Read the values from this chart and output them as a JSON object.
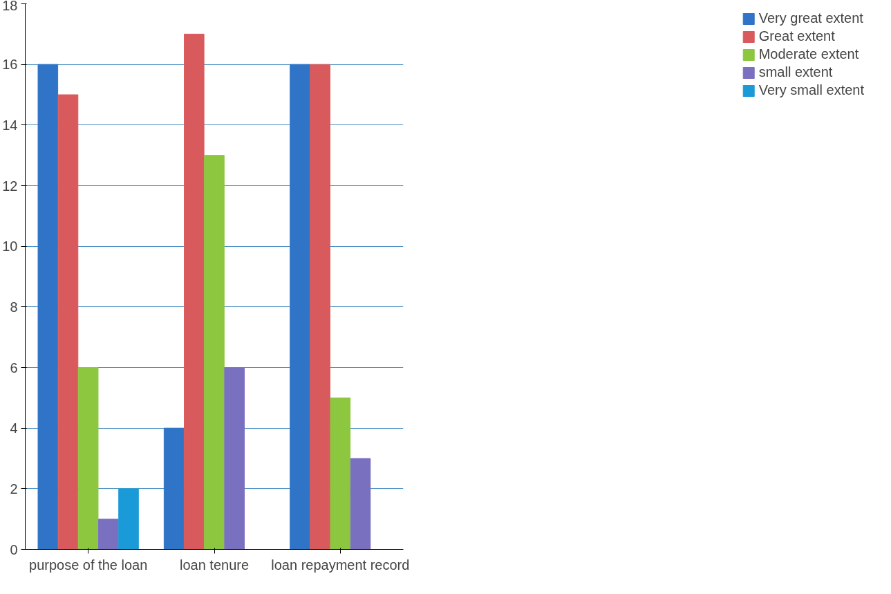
{
  "chart_data": {
    "type": "bar",
    "categories": [
      "purpose of the loan",
      "loan tenure",
      "loan repayment record"
    ],
    "series": [
      {
        "name": "Very great extent",
        "color": "#2f74c6",
        "values": [
          16,
          4,
          16
        ]
      },
      {
        "name": "Great extent",
        "color": "#d95a5c",
        "values": [
          15,
          17,
          16
        ]
      },
      {
        "name": "Moderate extent",
        "color": "#8dc63f",
        "values": [
          6,
          13,
          5
        ]
      },
      {
        "name": "small extent",
        "color": "#7a70c0",
        "values": [
          1,
          6,
          3
        ]
      },
      {
        "name": "Very small extent",
        "color": "#1b9ad8",
        "values": [
          2,
          0,
          0
        ]
      }
    ],
    "ylim": [
      0,
      18
    ],
    "yticks": [
      0,
      2,
      4,
      6,
      8,
      10,
      12,
      14,
      16,
      18
    ],
    "grid": "y",
    "legend": "right"
  }
}
